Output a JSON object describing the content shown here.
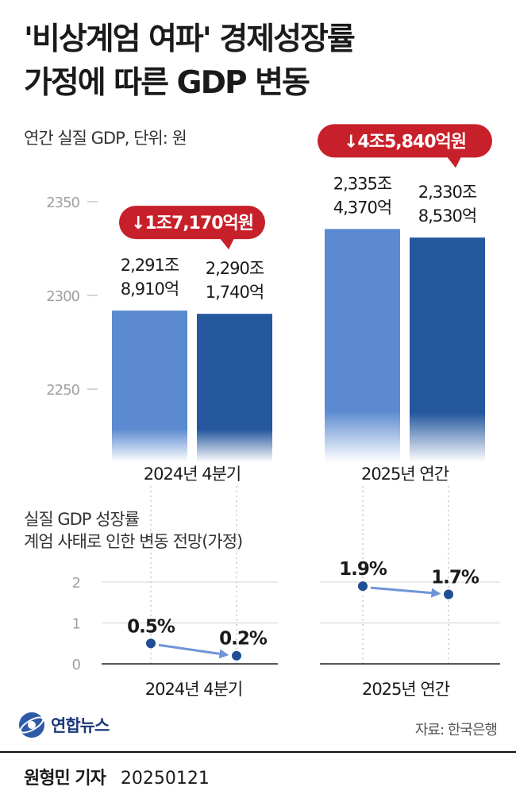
{
  "title_line1": "'비상계엄 여파' 경제성장률",
  "title_line2": "가정에 따른 GDP 변동",
  "gdp_subtitle": "연간 실질 GDP, 단위: 원",
  "rate_title_line1": "실질 GDP 성장률",
  "rate_title_line2": "계엄 사태로 인한 변동 전망(가정)",
  "source": "자료: 한국은행",
  "logo_text": "연합뉴스",
  "reporter": "원형민 기자",
  "date": "20250121",
  "colors": {
    "light_bar": "#5b8ad0",
    "dark_bar": "#24579e",
    "badge": "#c8202a",
    "arrow": "#6f94d6",
    "dot": "#1f4e94"
  },
  "chart_data": [
    {
      "type": "bar",
      "title": "연간 실질 GDP, 단위: 원",
      "unit": "조원",
      "yticks": [
        2250,
        2300,
        2350
      ],
      "ylim": [
        2212,
        2370
      ],
      "groups": [
        {
          "category": "2024년 4분기",
          "bars": [
            {
              "value": 2291.891,
              "label_line1": "2,291조",
              "label_line2": "8,910억"
            },
            {
              "value": 2290.174,
              "label_line1": "2,290조",
              "label_line2": "1,740억"
            }
          ],
          "change_label": "↓1조7,170억원"
        },
        {
          "category": "2025년 연간",
          "bars": [
            {
              "value": 2335.437,
              "label_line1": "2,335조",
              "label_line2": "4,370억"
            },
            {
              "value": 2330.853,
              "label_line1": "2,330조",
              "label_line2": "8,530억"
            }
          ],
          "change_label": "↓4조5,840억원"
        }
      ]
    },
    {
      "type": "line",
      "title": "실질 GDP 성장률 계엄 사태로 인한 변동 전망(가정)",
      "unit": "%",
      "yticks": [
        0,
        1,
        2
      ],
      "ylim": [
        0,
        2
      ],
      "groups": [
        {
          "category": "2024년 4분기",
          "from": 0.5,
          "to": 0.2,
          "from_label": "0.5%",
          "to_label": "0.2%"
        },
        {
          "category": "2025년 연간",
          "from": 1.9,
          "to": 1.7,
          "from_label": "1.9%",
          "to_label": "1.7%"
        }
      ]
    }
  ]
}
